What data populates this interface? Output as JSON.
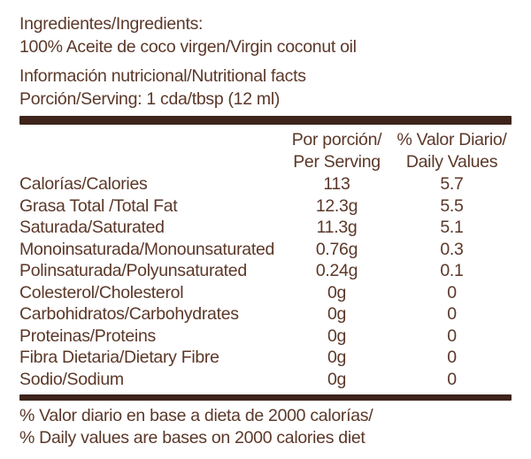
{
  "colors": {
    "text": "#5b3829",
    "divider": "#3e241a",
    "background": "#ffffff"
  },
  "intro": {
    "ingredients_label": "Ingredientes/Ingredients:",
    "ingredients_value": "100% Aceite de coco virgen/Virgin coconut oil",
    "nutrition_title": "Información nutricional/Nutritional facts",
    "serving": "Porción/Serving: 1 cda/tbsp (12 ml)"
  },
  "table": {
    "col_serving_line1": "Por porción/",
    "col_serving_line2": "Per Serving",
    "col_daily_line1": "% Valor Diario/",
    "col_daily_line2": "Daily Values",
    "rows": [
      {
        "label": "Calorías/Calories",
        "serving": "113",
        "daily": "5.7"
      },
      {
        "label": "Grasa Total /Total Fat",
        "serving": "12.3g",
        "daily": "5.5"
      },
      {
        "label": "Saturada/Saturated",
        "serving": "11.3g",
        "daily": "5.1"
      },
      {
        "label": "Monoinsaturada/Monounsaturated",
        "serving": "0.76g",
        "daily": "0.3"
      },
      {
        "label": "Polinsaturada/Polyunsaturated",
        "serving": "0.24g",
        "daily": "0.1"
      },
      {
        "label": "Colesterol/Cholesterol",
        "serving": "0g",
        "daily": "0"
      },
      {
        "label": "Carbohidratos/Carbohydrates",
        "serving": "0g",
        "daily": "0"
      },
      {
        "label": "Proteinas/Proteins",
        "serving": "0g",
        "daily": "0"
      },
      {
        "label": "Fibra Dietaria/Dietary Fibre",
        "serving": "0g",
        "daily": "0"
      },
      {
        "label": "Sodio/Sodium",
        "serving": "0g",
        "daily": "0"
      }
    ]
  },
  "footer": {
    "line1": "% Valor diario en base a dieta de 2000 calorías/",
    "line2": "% Daily values are bases on 2000 calories diet"
  }
}
